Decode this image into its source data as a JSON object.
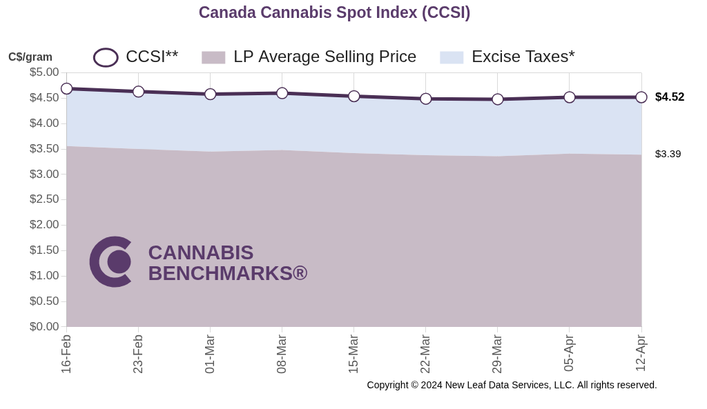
{
  "chart_data": {
    "type": "line",
    "title": "Canada Cannabis Spot Index (CCSI)",
    "y_label": "C$/gram",
    "categories": [
      "16-Feb",
      "23-Feb",
      "01-Mar",
      "08-Mar",
      "15-Mar",
      "22-Mar",
      "29-Mar",
      "05-Apr",
      "12-Apr"
    ],
    "series": [
      {
        "name": "LP Average Selling Price",
        "type": "area",
        "color": "#c8bbc6",
        "values": [
          3.56,
          3.5,
          3.45,
          3.48,
          3.42,
          3.38,
          3.36,
          3.41,
          3.39
        ]
      },
      {
        "name": "Excise Taxes*",
        "type": "area",
        "color": "#dae3f3",
        "values": [
          1.13,
          1.13,
          1.13,
          1.12,
          1.12,
          1.11,
          1.12,
          1.11,
          1.13
        ]
      },
      {
        "name": "CCSI**",
        "type": "line",
        "color": "#4a2f55",
        "marker": "circle",
        "line_style": "solid",
        "values": [
          4.69,
          4.63,
          4.58,
          4.6,
          4.54,
          4.49,
          4.48,
          4.52,
          4.52
        ]
      }
    ],
    "stacked": true,
    "ylim": [
      0,
      5
    ],
    "yticks": [
      {
        "value": 0,
        "label": "$0.00"
      },
      {
        "value": 0.5,
        "label": "$0.50"
      },
      {
        "value": 1,
        "label": "$1.00"
      },
      {
        "value": 1.5,
        "label": "$1.50"
      },
      {
        "value": 2,
        "label": "$2.00"
      },
      {
        "value": 2.5,
        "label": "$2.50"
      },
      {
        "value": 3,
        "label": "$3.00"
      },
      {
        "value": 3.5,
        "label": "$3.50"
      },
      {
        "value": 4,
        "label": "$4.00"
      },
      {
        "value": 4.5,
        "label": "$4.50"
      },
      {
        "value": 5,
        "label": "$5.00"
      }
    ],
    "grid": true,
    "legend": "top",
    "annotations": [
      {
        "text": "$4.52",
        "x": "12-Apr",
        "y": 4.52
      },
      {
        "text": "$3.39",
        "x": "12-Apr",
        "y": 3.39
      }
    ],
    "watermark": [
      "CANNABIS",
      "BENCHMARKS®"
    ],
    "footnote": "Copyright © 2024 New Leaf Data Services, LLC. All rights reserved."
  }
}
